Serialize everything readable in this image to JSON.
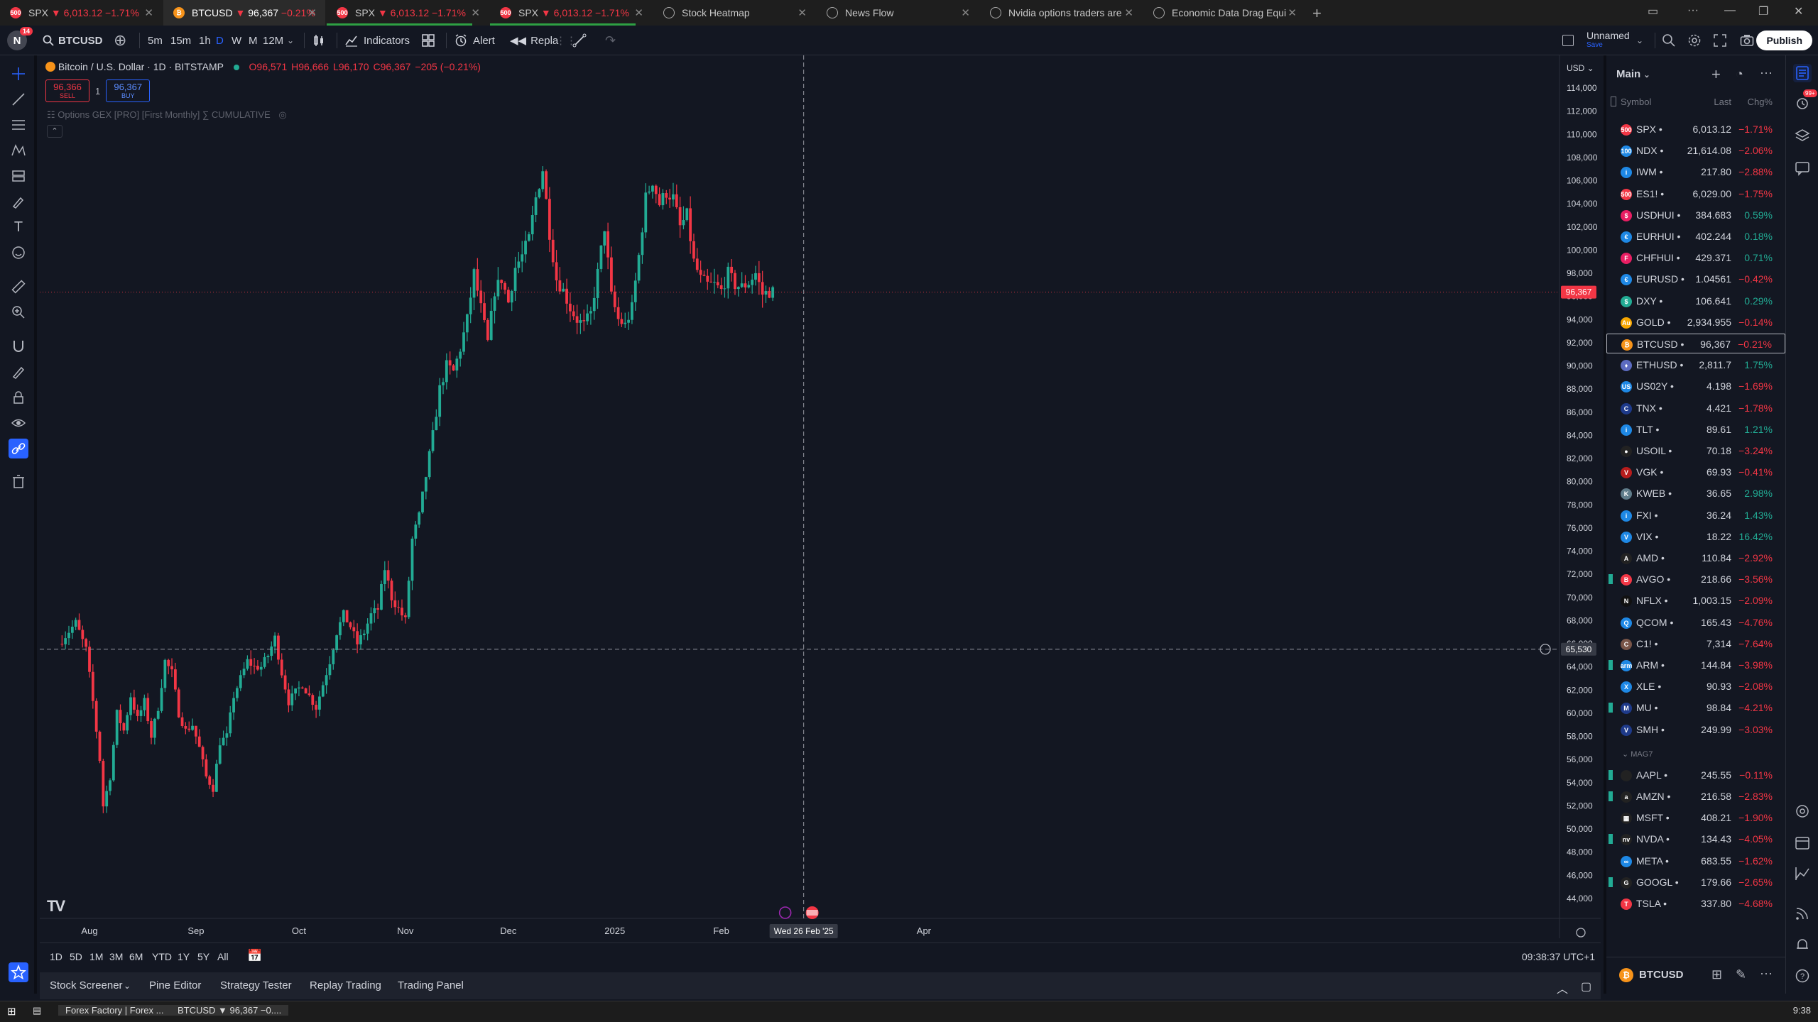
{
  "browser": {
    "tabs": [
      {
        "label": "SPX",
        "arrow": "▼",
        "price": "6,013.12",
        "change": "−1.71%",
        "icon": "500",
        "color": "#f23645",
        "active": false,
        "progress": 0
      },
      {
        "label": "BTCUSD",
        "arrow": "▼",
        "price": "96,367",
        "change": "−0.21%",
        "icon": "₿",
        "color": "#f7931a",
        "active": true,
        "progress": 0
      },
      {
        "label": "SPX",
        "arrow": "▼",
        "price": "6,013.12",
        "change": "−1.71%",
        "icon": "500",
        "color": "#f23645",
        "active": false,
        "progress": 0.9
      },
      {
        "label": "SPX",
        "arrow": "▼",
        "price": "6,013.12",
        "change": "−1.71%",
        "icon": "500",
        "color": "#f23645",
        "active": false,
        "progress": 0.9
      },
      {
        "label": "Stock Heatmap",
        "icon": "globe-icon",
        "active": false,
        "progress": 0
      },
      {
        "label": "News Flow",
        "icon": "globe-icon",
        "active": false,
        "progress": 0
      },
      {
        "label": "Nvidia options traders are",
        "icon": "globe-icon",
        "active": false,
        "progress": 0
      },
      {
        "label": "Economic Data Drag Equi",
        "icon": "globe-icon",
        "active": false,
        "progress": 0
      }
    ]
  },
  "header": {
    "avatar_letter": "N",
    "avatar_badge": "14",
    "symbol": "BTCUSD",
    "intervals": [
      "5m",
      "15m",
      "1h",
      "D",
      "W",
      "M",
      "12M"
    ],
    "active_interval": "D",
    "indicators_label": "Indicators",
    "alert_label": "Alert",
    "replay_label": "Repla",
    "layout_name": "Unnamed",
    "layout_status": "Save",
    "publish_label": "Publish"
  },
  "legend": {
    "title": "Bitcoin / U.S. Dollar · 1D · BITSTAMP",
    "open": "O96,571",
    "high": "H96,666",
    "low": "L96,170",
    "close": "C96,367",
    "change": "−205 (−0.21%)",
    "sell_price": "96,366",
    "sell_label": "SELL",
    "spread": "1",
    "buy_price": "96,367",
    "buy_label": "BUY",
    "study": "Options GEX [PRO] [First Monthly] ∑ CUMULATIVE"
  },
  "chart_data": {
    "type": "candlestick",
    "symbol": "BTCUSD",
    "interval": "1D",
    "currency": "USD",
    "ylim": [
      44000,
      114000
    ],
    "y_ticks": [
      44000,
      46000,
      48000,
      50000,
      52000,
      54000,
      56000,
      58000,
      60000,
      62000,
      64000,
      66000,
      68000,
      70000,
      72000,
      74000,
      76000,
      78000,
      80000,
      82000,
      84000,
      86000,
      88000,
      90000,
      92000,
      94000,
      96000,
      98000,
      100000,
      102000,
      104000,
      106000,
      108000,
      110000,
      112000,
      114000
    ],
    "y_tick_labels": [
      "44,000",
      "46,000",
      "48,000",
      "50,000",
      "52,000",
      "54,000",
      "56,000",
      "58,000",
      "60,000",
      "62,000",
      "64,000",
      "66,000",
      "68,000",
      "70,000",
      "72,000",
      "74,000",
      "76,000",
      "78,000",
      "80,000",
      "82,000",
      "84,000",
      "86,000",
      "88,000",
      "90,000",
      "92,000",
      "94,000",
      "96,000",
      "98,000",
      "100,000",
      "102,000",
      "104,000",
      "106,000",
      "108,000",
      "110,000",
      "112,000",
      "114,000"
    ],
    "x_ticks": [
      {
        "label": "Aug",
        "day": 0
      },
      {
        "label": "Sep",
        "day": 31
      },
      {
        "label": "Oct",
        "day": 61
      },
      {
        "label": "Nov",
        "day": 92
      },
      {
        "label": "Dec",
        "day": 122
      },
      {
        "label": "2025",
        "day": 153
      },
      {
        "label": "Feb",
        "day": 184
      },
      {
        "label": "Apr",
        "day": 243
      }
    ],
    "first_day": -8,
    "anchors": [
      [
        -8,
        66000
      ],
      [
        -3,
        67800
      ],
      [
        0,
        65500
      ],
      [
        2,
        61000
      ],
      [
        4,
        56000
      ],
      [
        5,
        52000
      ],
      [
        7,
        54500
      ],
      [
        9,
        60000
      ],
      [
        11,
        58500
      ],
      [
        13,
        61500
      ],
      [
        15,
        59500
      ],
      [
        17,
        61000
      ],
      [
        19,
        58000
      ],
      [
        21,
        60500
      ],
      [
        23,
        64500
      ],
      [
        25,
        63500
      ],
      [
        27,
        60000
      ],
      [
        29,
        58500
      ],
      [
        31,
        59000
      ],
      [
        33,
        57000
      ],
      [
        35,
        54500
      ],
      [
        37,
        53500
      ],
      [
        39,
        57500
      ],
      [
        41,
        58000
      ],
      [
        43,
        61500
      ],
      [
        45,
        63000
      ],
      [
        47,
        64500
      ],
      [
        49,
        64000
      ],
      [
        51,
        64000
      ],
      [
        53,
        65000
      ],
      [
        55,
        66500
      ],
      [
        57,
        63500
      ],
      [
        59,
        61000
      ],
      [
        61,
        61800
      ],
      [
        63,
        62500
      ],
      [
        65,
        61500
      ],
      [
        67,
        60500
      ],
      [
        69,
        62500
      ],
      [
        71,
        64500
      ],
      [
        73,
        67000
      ],
      [
        75,
        68500
      ],
      [
        77,
        67500
      ],
      [
        79,
        66000
      ],
      [
        81,
        67000
      ],
      [
        83,
        68500
      ],
      [
        85,
        69000
      ],
      [
        87,
        72500
      ],
      [
        89,
        70000
      ],
      [
        91,
        69000
      ],
      [
        93,
        68000
      ],
      [
        95,
        75000
      ],
      [
        97,
        77000
      ],
      [
        99,
        80500
      ],
      [
        101,
        84000
      ],
      [
        103,
        88000
      ],
      [
        105,
        90000
      ],
      [
        107,
        89500
      ],
      [
        109,
        91500
      ],
      [
        111,
        94000
      ],
      [
        113,
        98000
      ],
      [
        115,
        95000
      ],
      [
        117,
        92000
      ],
      [
        119,
        96500
      ],
      [
        121,
        97500
      ],
      [
        123,
        95500
      ],
      [
        125,
        98500
      ],
      [
        127,
        99500
      ],
      [
        129,
        101000
      ],
      [
        131,
        104500
      ],
      [
        133,
        107000
      ],
      [
        135,
        101500
      ],
      [
        137,
        97500
      ],
      [
        139,
        96500
      ],
      [
        141,
        95000
      ],
      [
        143,
        94000
      ],
      [
        145,
        93500
      ],
      [
        147,
        94500
      ],
      [
        149,
        98000
      ],
      [
        151,
        102000
      ],
      [
        153,
        96000
      ],
      [
        155,
        94000
      ],
      [
        157,
        93500
      ],
      [
        159,
        95000
      ],
      [
        161,
        99500
      ],
      [
        163,
        104500
      ],
      [
        165,
        106000
      ],
      [
        167,
        104000
      ],
      [
        169,
        105000
      ],
      [
        171,
        104500
      ],
      [
        173,
        102000
      ],
      [
        175,
        103000
      ],
      [
        177,
        99000
      ],
      [
        179,
        97500
      ],
      [
        181,
        97000
      ],
      [
        183,
        97000
      ],
      [
        185,
        96500
      ],
      [
        187,
        98000
      ],
      [
        189,
        97000
      ],
      [
        191,
        96800
      ],
      [
        193,
        97200
      ],
      [
        195,
        98000
      ],
      [
        197,
        96200
      ],
      [
        199,
        96400
      ]
    ],
    "last_price": 96367,
    "last_price_label": "96,367",
    "hline_price": 65530,
    "hline_label": "65,530",
    "crosshair_day": 208,
    "crosshair_label": "Wed 26 Feb '25"
  },
  "rangebar": {
    "ranges": [
      "1D",
      "5D",
      "1M",
      "3M",
      "6M",
      "YTD",
      "1Y",
      "5Y",
      "All"
    ],
    "time": "09:38:37 UTC+1"
  },
  "panel_tabs": [
    "Stock Screener",
    "Pine Editor",
    "Strategy Tester",
    "Replay Trading",
    "Trading Panel"
  ],
  "watchlist": {
    "list_name": "Main",
    "col_symbol": "Symbol",
    "col_last": "Last",
    "col_chg": "Chg%",
    "rows": [
      {
        "sym": "SPX",
        "last": "6,013.12",
        "chg": "−1.71%",
        "icon": "500",
        "color": "#f23645",
        "neg": true
      },
      {
        "sym": "NDX",
        "last": "21,614.08",
        "chg": "−2.06%",
        "icon": "100",
        "color": "#1e88e5",
        "neg": true
      },
      {
        "sym": "IWM",
        "last": "217.80",
        "chg": "−2.88%",
        "icon": "i",
        "color": "#1e88e5",
        "neg": true
      },
      {
        "sym": "ES1!",
        "last": "6,029.00",
        "chg": "−1.75%",
        "icon": "500",
        "color": "#f23645",
        "neg": true
      },
      {
        "sym": "USDHUI",
        "last": "384.683",
        "chg": "0.59%",
        "icon": "$",
        "color": "#e91e63",
        "neg": false
      },
      {
        "sym": "EURHUI",
        "last": "402.244",
        "chg": "0.18%",
        "icon": "€",
        "color": "#1e88e5",
        "neg": false
      },
      {
        "sym": "CHFHUI",
        "last": "429.371",
        "chg": "0.71%",
        "icon": "F",
        "color": "#e91e63",
        "neg": false
      },
      {
        "sym": "EURUSD",
        "last": "1.04561",
        "chg": "−0.42%",
        "icon": "€",
        "color": "#1e88e5",
        "neg": true
      },
      {
        "sym": "DXY",
        "last": "106.641",
        "chg": "0.29%",
        "icon": "$",
        "color": "#22ab94",
        "neg": false
      },
      {
        "sym": "GOLD",
        "last": "2,934.955",
        "chg": "−0.14%",
        "icon": "Au",
        "color": "#f7a600",
        "neg": true
      },
      {
        "sym": "BTCUSD",
        "last": "96,367",
        "chg": "−0.21%",
        "icon": "₿",
        "color": "#f7931a",
        "neg": true,
        "selected": true
      },
      {
        "sym": "ETHUSD",
        "last": "2,811.7",
        "chg": "1.75%",
        "icon": "♦",
        "color": "#5c6bc0",
        "neg": false
      },
      {
        "sym": "US02Y",
        "last": "4.198",
        "chg": "−1.69%",
        "icon": "US",
        "color": "#1e88e5",
        "neg": true
      },
      {
        "sym": "TNX",
        "last": "4.421",
        "chg": "−1.78%",
        "icon": "C",
        "color": "#1e3a8a",
        "neg": true
      },
      {
        "sym": "TLT",
        "last": "89.61",
        "chg": "1.21%",
        "icon": "i",
        "color": "#1e88e5",
        "neg": false
      },
      {
        "sym": "USOIL",
        "last": "70.18",
        "chg": "−3.24%",
        "icon": "●",
        "color": "#222222",
        "neg": true
      },
      {
        "sym": "VGK",
        "last": "69.93",
        "chg": "−0.41%",
        "icon": "V",
        "color": "#b71c1c",
        "neg": true
      },
      {
        "sym": "KWEB",
        "last": "36.65",
        "chg": "2.98%",
        "icon": "K",
        "color": "#607d8b",
        "neg": false
      },
      {
        "sym": "FXI",
        "last": "36.24",
        "chg": "1.43%",
        "icon": "i",
        "color": "#1e88e5",
        "neg": false
      },
      {
        "sym": "VIX",
        "last": "18.22",
        "chg": "16.42%",
        "icon": "V",
        "color": "#1e88e5",
        "neg": false
      },
      {
        "sym": "AMD",
        "last": "110.84",
        "chg": "−2.92%",
        "icon": "A",
        "color": "#222222",
        "neg": true
      },
      {
        "sym": "AVGO",
        "last": "218.66",
        "chg": "−3.56%",
        "icon": "B",
        "color": "#f23645",
        "neg": true,
        "mark": true
      },
      {
        "sym": "NFLX",
        "last": "1,003.15",
        "chg": "−2.09%",
        "icon": "N",
        "color": "#111111",
        "neg": true
      },
      {
        "sym": "QCOM",
        "last": "165.43",
        "chg": "−4.76%",
        "icon": "Q",
        "color": "#1e88e5",
        "neg": true
      },
      {
        "sym": "C1!",
        "last": "7,314",
        "chg": "−7.64%",
        "icon": "C",
        "color": "#795548",
        "neg": true
      },
      {
        "sym": "ARM",
        "last": "144.84",
        "chg": "−3.98%",
        "icon": "arm",
        "color": "#1e88e5",
        "neg": true,
        "mark": true
      },
      {
        "sym": "XLE",
        "last": "90.93",
        "chg": "−2.08%",
        "icon": "X",
        "color": "#1e88e5",
        "neg": true
      },
      {
        "sym": "MU",
        "last": "98.84",
        "chg": "−4.21%",
        "icon": "M",
        "color": "#1e3a8a",
        "neg": true,
        "mark": true
      },
      {
        "sym": "SMH",
        "last": "249.99",
        "chg": "−3.03%",
        "icon": "V",
        "color": "#1e3a8a",
        "neg": true
      }
    ],
    "section_label": "MAG7",
    "section_rows": [
      {
        "sym": "AAPL",
        "last": "245.55",
        "chg": "−0.11%",
        "icon": "",
        "color": "#222222",
        "neg": true,
        "mark": true
      },
      {
        "sym": "AMZN",
        "last": "216.58",
        "chg": "−2.83%",
        "icon": "a",
        "color": "#222222",
        "neg": true,
        "mark": true
      },
      {
        "sym": "MSFT",
        "last": "408.21",
        "chg": "−1.90%",
        "icon": "▦",
        "color": "#222222",
        "neg": true
      },
      {
        "sym": "NVDA",
        "last": "134.43",
        "chg": "−4.05%",
        "icon": "nv",
        "color": "#222222",
        "neg": true,
        "mark": true
      },
      {
        "sym": "META",
        "last": "683.55",
        "chg": "−1.62%",
        "icon": "∞",
        "color": "#1e88e5",
        "neg": true
      },
      {
        "sym": "GOOGL",
        "last": "179.66",
        "chg": "−2.65%",
        "icon": "G",
        "color": "#222222",
        "neg": true,
        "mark": true
      },
      {
        "sym": "TSLA",
        "last": "337.80",
        "chg": "−4.68%",
        "icon": "T",
        "color": "#f23645",
        "neg": true
      }
    ],
    "footer_symbol": "BTCUSD"
  },
  "taskbar": {
    "items": [
      "Forex Factory | Forex ...",
      "BTCUSD ▼ 96,367 −0...."
    ],
    "clock": "9:38"
  },
  "colors": {
    "up": "#22ab94",
    "down": "#f23645",
    "bg": "#131722",
    "accent": "#2962ff"
  }
}
